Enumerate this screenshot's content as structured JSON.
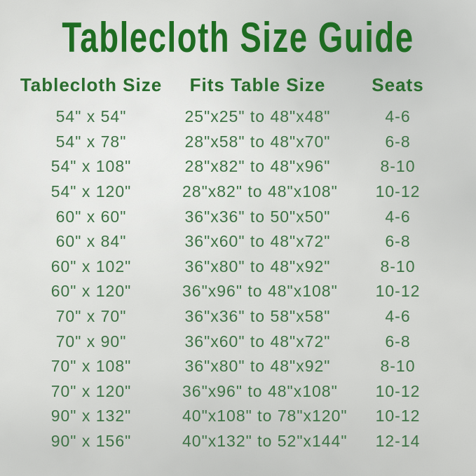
{
  "title": "Tablecloth Size Guide",
  "table": {
    "headers": [
      "Tablecloth Size",
      "Fits Table Size",
      "Seats"
    ],
    "rows": [
      [
        "54\" x 54\"",
        "25\"x25\" to 48\"x48\"",
        "4-6"
      ],
      [
        "54\" x 78\"",
        "28\"x58\" to 48\"x70\"",
        "6-8"
      ],
      [
        "54\" x 108\"",
        "28\"x82\" to 48\"x96\"",
        "8-10"
      ],
      [
        "54\" x 120\"",
        "28\"x82\" to 48\"x108\"",
        "10-12"
      ],
      [
        "60\" x 60\"",
        "36\"x36\" to 50\"x50\"",
        "4-6"
      ],
      [
        "60\" x 84\"",
        "36\"x60\" to 48\"x72\"",
        "6-8"
      ],
      [
        "60\" x 102\"",
        "36\"x80\" to 48\"x92\"",
        "8-10"
      ],
      [
        "60\" x 120\"",
        "36\"x96\" to 48\"x108\"",
        "10-12"
      ],
      [
        "70\" x 70\"",
        "36\"x36\" to 58\"x58\"",
        "4-6"
      ],
      [
        "70\" x 90\"",
        "36\"x60\" to 48\"x72\"",
        "6-8"
      ],
      [
        "70\" x 108\"",
        "36\"x80\" to 48\"x92\"",
        "8-10"
      ],
      [
        "70\" x 120\"",
        "36\"x96\" to 48\"x108\"",
        "10-12"
      ],
      [
        "90\" x 132\"",
        "40\"x108\" to 78\"x120\"",
        "10-12"
      ],
      [
        "90\" x 156\"",
        "40\"x132\" to 52\"x144\"",
        "12-14"
      ]
    ]
  },
  "chart_data": {
    "type": "table",
    "title": "Tablecloth Size Guide",
    "columns": [
      "Tablecloth Size",
      "Fits Table Size",
      "Seats"
    ],
    "rows": [
      [
        "54\" x 54\"",
        "25\"x25\" to 48\"x48\"",
        "4-6"
      ],
      [
        "54\" x 78\"",
        "28\"x58\" to 48\"x70\"",
        "6-8"
      ],
      [
        "54\" x 108\"",
        "28\"x82\" to 48\"x96\"",
        "8-10"
      ],
      [
        "54\" x 120\"",
        "28\"x82\" to 48\"x108\"",
        "10-12"
      ],
      [
        "60\" x 60\"",
        "36\"x36\" to 50\"x50\"",
        "4-6"
      ],
      [
        "60\" x 84\"",
        "36\"x60\" to 48\"x72\"",
        "6-8"
      ],
      [
        "60\" x 102\"",
        "36\"x80\" to 48\"x92\"",
        "8-10"
      ],
      [
        "60\" x 120\"",
        "36\"x96\" to 48\"x108\"",
        "10-12"
      ],
      [
        "70\" x 70\"",
        "36\"x36\" to 58\"x58\"",
        "4-6"
      ],
      [
        "70\" x 90\"",
        "36\"x60\" to 48\"x72\"",
        "6-8"
      ],
      [
        "70\" x 108\"",
        "36\"x80\" to 48\"x92\"",
        "8-10"
      ],
      [
        "70\" x 120\"",
        "36\"x96\" to 48\"x108\"",
        "10-12"
      ],
      [
        "90\" x 132\"",
        "40\"x108\" to 78\"x120\"",
        "10-12"
      ],
      [
        "90\" x 156\"",
        "40\"x132\" to 52\"x144\"",
        "12-14"
      ]
    ]
  },
  "colors": {
    "title_green": "#1e6b22",
    "header_green": "#2a6c2e",
    "body_green": "#3e7245",
    "background_silver": "#dcdeda"
  }
}
